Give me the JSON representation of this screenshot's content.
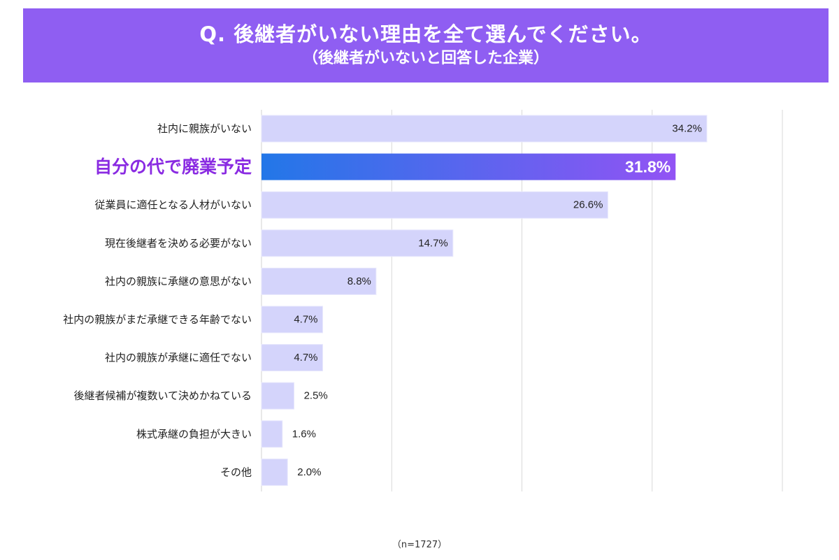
{
  "header": {
    "title": "Q. 後継者がいない理由を全て選んでください。",
    "subtitle": "（後継者がいないと回答した企業）"
  },
  "note": "（n=1727）",
  "colors": {
    "header_bg": "#8f5ef2",
    "bar": "#d4d4fb",
    "bar_border": "#e8e8fd",
    "highlight_start": "#2277e8",
    "highlight_end": "#9253f4",
    "highlight_label": "#8a2be2",
    "grid": "#d9d9d9"
  },
  "chart_data": {
    "type": "bar",
    "orientation": "horizontal",
    "title": "Q. 後継者がいない理由を全て選んでください。",
    "categories": [
      "社内に親族がいない",
      "自分の代で廃業予定",
      "従業員に適任となる人材がいない",
      "現在後継者を決める必要がない",
      "社内の親族に承継の意思がない",
      "社内の親族がまだ承継できる年齢でない",
      "社内の親族が承継に適任でない",
      "後継者候補が複数いて決めかねている",
      "株式承継の負担が大きい",
      "その他"
    ],
    "values": [
      34.2,
      31.8,
      26.6,
      14.7,
      8.8,
      4.7,
      4.7,
      2.5,
      1.6,
      2.0
    ],
    "labels": [
      "34.2%",
      "31.8%",
      "26.6%",
      "14.7%",
      "8.8%",
      "4.7%",
      "4.7%",
      "2.5%",
      "1.6%",
      "2.0%"
    ],
    "highlight_index": 1,
    "xlim": [
      0,
      40
    ],
    "grid": true,
    "xlabel": "",
    "ylabel": ""
  }
}
